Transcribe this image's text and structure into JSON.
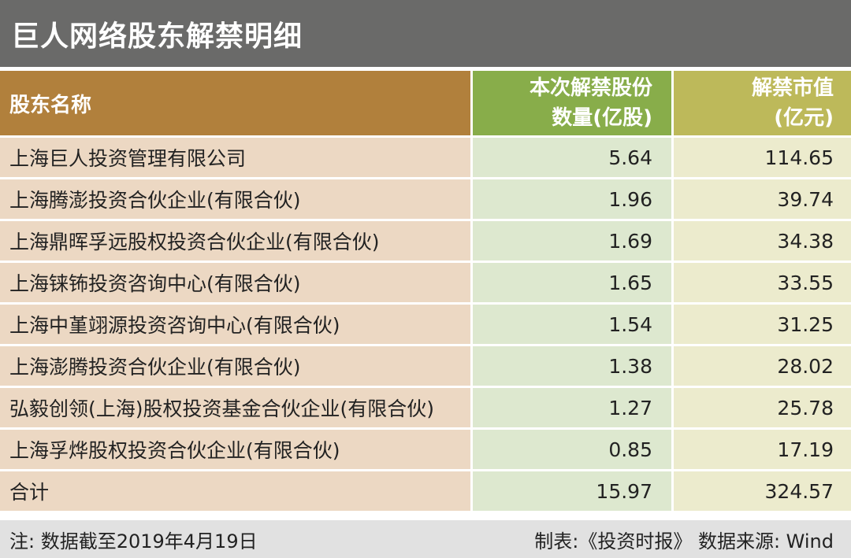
{
  "title": "巨人网络股东解禁明细",
  "table": {
    "headers": {
      "shareholder": "股东名称",
      "shares_line1": "本次解禁股份",
      "shares_line2": "数量(亿股)",
      "value_line1": "解禁市值",
      "value_line2": "(亿元)"
    },
    "rows": [
      {
        "name": "上海巨人投资管理有限公司",
        "shares": "5.64",
        "value": "114.65"
      },
      {
        "name": "上海腾澎投资合伙企业(有限合伙)",
        "shares": "1.96",
        "value": "39.74"
      },
      {
        "name": "上海鼎晖孚远股权投资合伙企业(有限合伙)",
        "shares": "1.69",
        "value": "34.38"
      },
      {
        "name": "上海铼钸投资咨询中心(有限合伙)",
        "shares": "1.65",
        "value": "33.55"
      },
      {
        "name": "上海中堇翊源投资咨询中心(有限合伙)",
        "shares": "1.54",
        "value": "31.25"
      },
      {
        "name": "上海澎腾投资合伙企业(有限合伙)",
        "shares": "1.38",
        "value": "28.02"
      },
      {
        "name": "弘毅创领(上海)股权投资基金合伙企业(有限合伙)",
        "shares": "1.27",
        "value": "25.78"
      },
      {
        "name": "上海孚烨股权投资合伙企业(有限合伙)",
        "shares": "0.85",
        "value": "17.19"
      },
      {
        "name": "合计",
        "shares": "15.97",
        "value": "324.57"
      }
    ]
  },
  "footer": {
    "note": "注: 数据截至2019年4月19日",
    "source": "制表:《投资时报》 数据来源: Wind"
  },
  "colors": {
    "title_bg": "#6a6a69",
    "header_name_bg": "#b1803c",
    "header_shares_bg": "#88ad4a",
    "header_value_bg": "#bdb95a",
    "row_name_bg": "#ecd8c3",
    "row_shares_bg": "#dde8cf",
    "row_value_bg": "#ecebcd",
    "footer_bg": "#e1e1e1"
  }
}
